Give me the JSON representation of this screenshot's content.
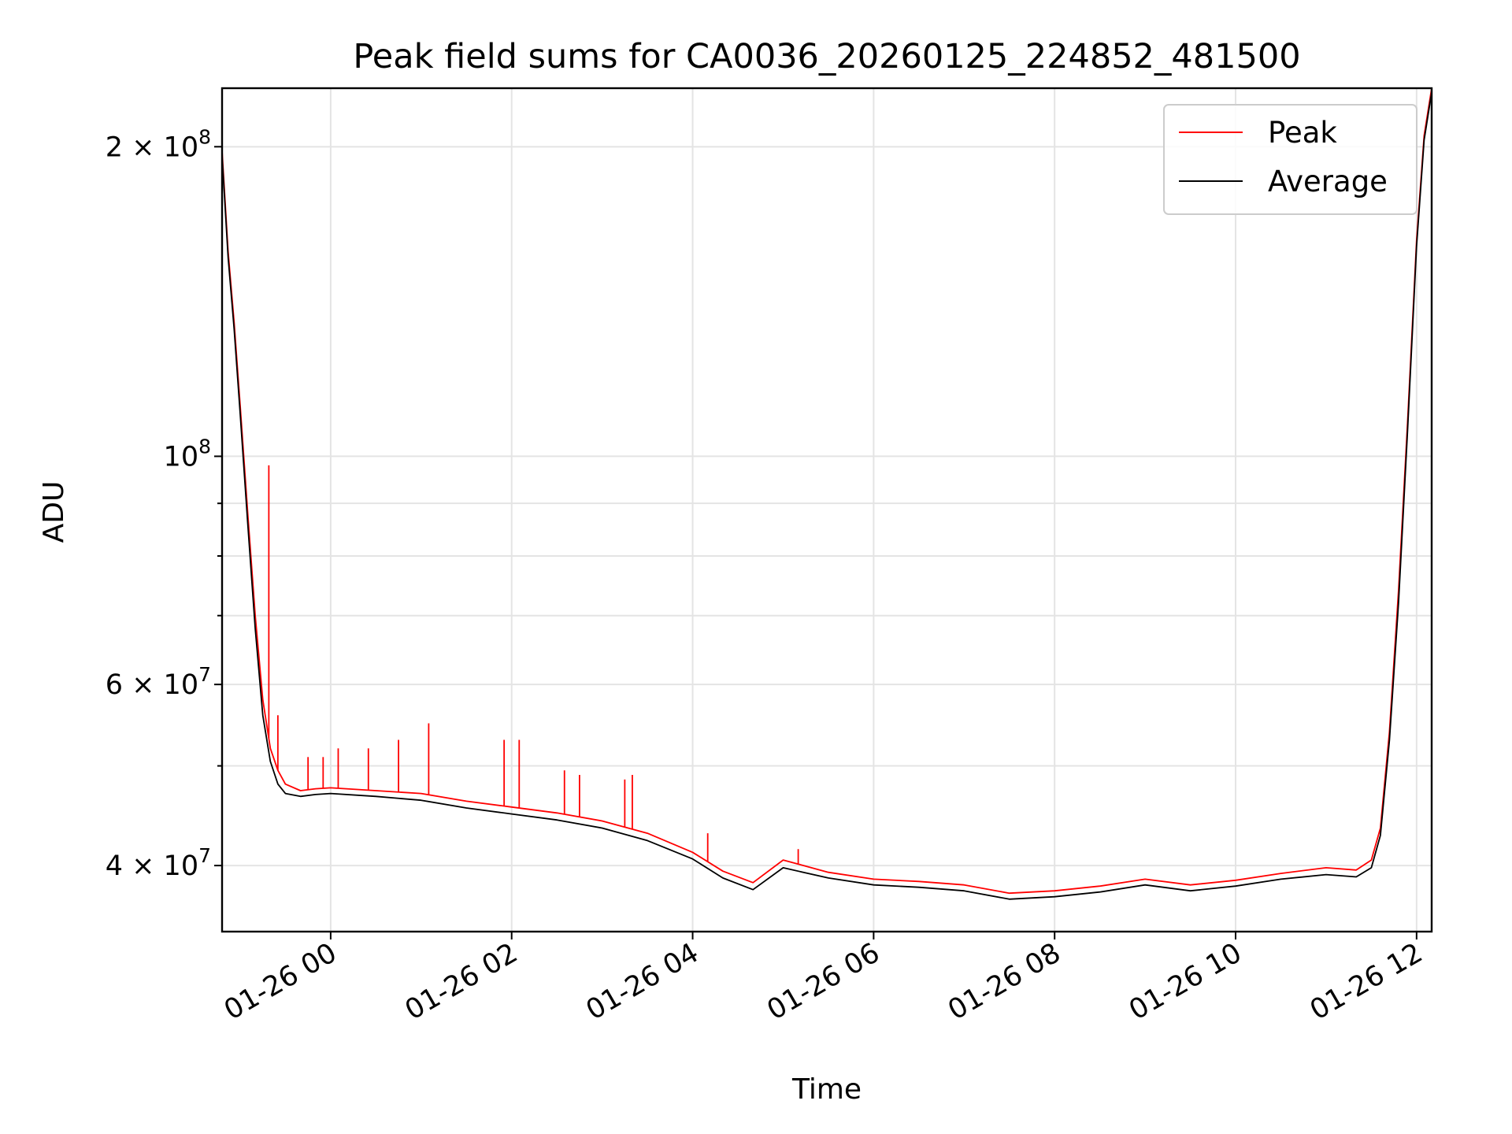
{
  "chart_data": {
    "type": "line",
    "title": "Peak field sums for CA0036_20260125_224852_481500",
    "xlabel": "Time",
    "ylabel": "ADU",
    "y_scale": "log",
    "ylim": [
      34500000,
      228000000
    ],
    "xlim": [
      "2026-01-25 22:48",
      "2026-01-26 12:10"
    ],
    "grid": true,
    "legend": "top-right",
    "x_ticks": [
      {
        "t": "2026-01-26 00:00",
        "label": "01-26 00"
      },
      {
        "t": "2026-01-26 02:00",
        "label": "01-26 02"
      },
      {
        "t": "2026-01-26 04:00",
        "label": "01-26 04"
      },
      {
        "t": "2026-01-26 06:00",
        "label": "01-26 06"
      },
      {
        "t": "2026-01-26 08:00",
        "label": "01-26 08"
      },
      {
        "t": "2026-01-26 10:00",
        "label": "01-26 10"
      },
      {
        "t": "2026-01-26 12:00",
        "label": "01-26 12"
      }
    ],
    "y_major_ticks": [
      {
        "value": 40000000,
        "base": "4 × 10",
        "exp": "7"
      },
      {
        "value": 60000000,
        "base": "6 × 10",
        "exp": "7"
      },
      {
        "value": 100000000,
        "base": "10",
        "exp": "8"
      },
      {
        "value": 200000000,
        "base": "2 × 10",
        "exp": "8"
      }
    ],
    "y_minor_ticks": [
      50000000,
      70000000,
      80000000,
      90000000
    ],
    "series": [
      {
        "name": "Peak",
        "color": "#ff0000",
        "x": [
          "2026-01-25 22:48",
          "2026-01-25 22:52",
          "2026-01-25 22:56",
          "2026-01-25 23:00",
          "2026-01-25 23:05",
          "2026-01-25 23:10",
          "2026-01-25 23:15",
          "2026-01-25 23:20",
          "2026-01-25 23:25",
          "2026-01-25 23:30",
          "2026-01-25 23:40",
          "2026-01-25 23:50",
          "2026-01-26 00:00",
          "2026-01-26 00:30",
          "2026-01-26 01:00",
          "2026-01-26 01:30",
          "2026-01-26 02:00",
          "2026-01-26 02:30",
          "2026-01-26 03:00",
          "2026-01-26 03:30",
          "2026-01-26 04:00",
          "2026-01-26 04:20",
          "2026-01-26 04:40",
          "2026-01-26 05:00",
          "2026-01-26 05:30",
          "2026-01-26 06:00",
          "2026-01-26 06:30",
          "2026-01-26 07:00",
          "2026-01-26 07:30",
          "2026-01-26 08:00",
          "2026-01-26 08:30",
          "2026-01-26 09:00",
          "2026-01-26 09:30",
          "2026-01-26 10:00",
          "2026-01-26 10:30",
          "2026-01-26 11:00",
          "2026-01-26 11:20",
          "2026-01-26 11:30",
          "2026-01-26 11:36",
          "2026-01-26 11:42",
          "2026-01-26 11:48",
          "2026-01-26 11:54",
          "2026-01-26 12:00",
          "2026-01-26 12:05",
          "2026-01-26 12:10"
        ],
        "y": [
          198000000,
          158000000,
          135000000,
          112000000,
          88000000,
          70000000,
          58000000,
          52000000,
          49500000,
          48000000,
          47300000,
          47500000,
          47600000,
          47300000,
          47000000,
          46200000,
          45600000,
          45000000,
          44200000,
          43000000,
          41200000,
          39500000,
          38500000,
          40500000,
          39400000,
          38800000,
          38600000,
          38300000,
          37600000,
          37800000,
          38200000,
          38800000,
          38300000,
          38700000,
          39300000,
          39800000,
          39600000,
          40500000,
          43500000,
          54000000,
          74000000,
          108000000,
          162000000,
          205000000,
          228000000
        ],
        "spikes": [
          {
            "t": "2026-01-25 23:19",
            "value": 98000000
          },
          {
            "t": "2026-01-25 23:25",
            "value": 56000000
          },
          {
            "t": "2026-01-25 23:45",
            "value": 51000000
          },
          {
            "t": "2026-01-25 23:55",
            "value": 51000000
          },
          {
            "t": "2026-01-26 00:05",
            "value": 52000000
          },
          {
            "t": "2026-01-26 00:25",
            "value": 52000000
          },
          {
            "t": "2026-01-26 00:45",
            "value": 53000000
          },
          {
            "t": "2026-01-26 01:05",
            "value": 55000000
          },
          {
            "t": "2026-01-26 01:55",
            "value": 53000000
          },
          {
            "t": "2026-01-26 02:05",
            "value": 53000000
          },
          {
            "t": "2026-01-26 02:35",
            "value": 49500000
          },
          {
            "t": "2026-01-26 02:45",
            "value": 49000000
          },
          {
            "t": "2026-01-26 03:15",
            "value": 48500000
          },
          {
            "t": "2026-01-26 03:20",
            "value": 49000000
          },
          {
            "t": "2026-01-26 04:10",
            "value": 43000000
          },
          {
            "t": "2026-01-26 05:10",
            "value": 41500000
          }
        ]
      },
      {
        "name": "Average",
        "color": "#000000",
        "x": [
          "2026-01-25 22:48",
          "2026-01-25 22:52",
          "2026-01-25 22:56",
          "2026-01-25 23:00",
          "2026-01-25 23:05",
          "2026-01-25 23:10",
          "2026-01-25 23:15",
          "2026-01-25 23:20",
          "2026-01-25 23:25",
          "2026-01-25 23:30",
          "2026-01-25 23:40",
          "2026-01-25 23:50",
          "2026-01-26 00:00",
          "2026-01-26 00:30",
          "2026-01-26 01:00",
          "2026-01-26 01:30",
          "2026-01-26 02:00",
          "2026-01-26 02:30",
          "2026-01-26 03:00",
          "2026-01-26 03:30",
          "2026-01-26 04:00",
          "2026-01-26 04:20",
          "2026-01-26 04:40",
          "2026-01-26 05:00",
          "2026-01-26 05:30",
          "2026-01-26 06:00",
          "2026-01-26 06:30",
          "2026-01-26 07:00",
          "2026-01-26 07:30",
          "2026-01-26 08:00",
          "2026-01-26 08:30",
          "2026-01-26 09:00",
          "2026-01-26 09:30",
          "2026-01-26 10:00",
          "2026-01-26 10:30",
          "2026-01-26 11:00",
          "2026-01-26 11:20",
          "2026-01-26 11:30",
          "2026-01-26 11:36",
          "2026-01-26 11:42",
          "2026-01-26 11:48",
          "2026-01-26 11:54",
          "2026-01-26 12:00",
          "2026-01-26 12:05",
          "2026-01-26 12:10"
        ],
        "y": [
          196000000,
          156000000,
          133000000,
          110000000,
          86000000,
          68000000,
          56000000,
          50500000,
          48000000,
          47000000,
          46700000,
          46900000,
          47000000,
          46700000,
          46300000,
          45500000,
          44900000,
          44300000,
          43500000,
          42300000,
          40600000,
          38900000,
          37900000,
          39800000,
          38900000,
          38300000,
          38100000,
          37800000,
          37100000,
          37300000,
          37700000,
          38300000,
          37800000,
          38200000,
          38800000,
          39200000,
          39000000,
          39800000,
          42800000,
          53000000,
          72000000,
          106000000,
          160000000,
          203000000,
          226000000
        ]
      }
    ]
  }
}
